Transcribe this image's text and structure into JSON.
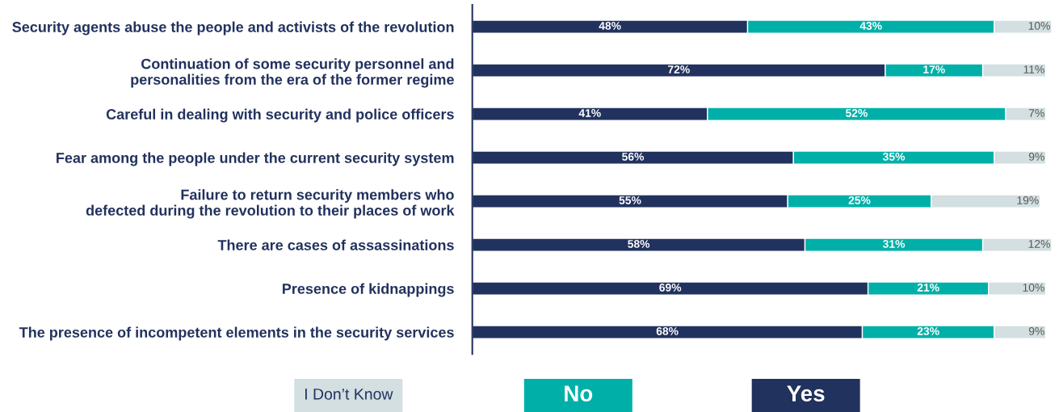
{
  "chart_data": {
    "type": "bar",
    "orientation": "horizontal",
    "stacked": true,
    "categories": [
      "Security agents abuse the people and activists of the revolution",
      "Continuation of some security personnel and\npersonalities from the era of the former regime",
      "Careful in dealing with security and police officers",
      "Fear among the people under the current security system",
      "Failure to return security members who\ndefected during the revolution to their places of work",
      "There are cases of assassinations",
      "Presence of kidnappings",
      "The presence of incompetent elements in the security services"
    ],
    "series": [
      {
        "name": "Yes",
        "color": "#22325e",
        "values": [
          48,
          72,
          41,
          56,
          55,
          58,
          69,
          68
        ],
        "value_labels": [
          "48%",
          "72%",
          "41%",
          "56%",
          "55%",
          "58%",
          "69%",
          "68%"
        ]
      },
      {
        "name": "No",
        "color": "#00b0a8",
        "values": [
          43,
          17,
          52,
          35,
          25,
          31,
          21,
          23
        ],
        "value_labels": [
          "43%",
          "17%",
          "52%",
          "35%",
          "25%",
          "31%",
          "21%",
          "23%"
        ]
      },
      {
        "name": "I Don’t Know",
        "color": "#d3dfe0",
        "values": [
          10,
          11,
          7,
          9,
          19,
          12,
          10,
          9
        ],
        "value_labels": [
          "10%",
          "11%",
          "7%",
          "9%",
          "19%",
          "12%",
          "10%",
          "9%"
        ]
      }
    ],
    "xlim": [
      0,
      101
    ],
    "tick_labels": "y",
    "grid": false,
    "legend": "bottom"
  }
}
